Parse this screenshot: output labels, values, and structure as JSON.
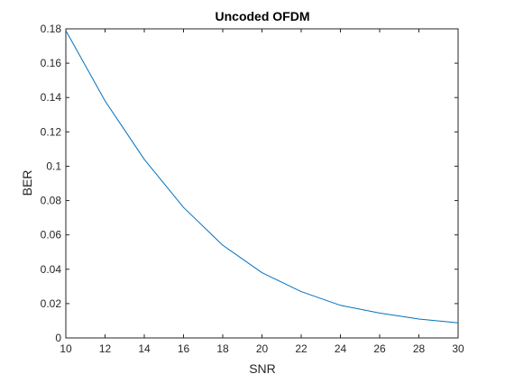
{
  "chart_data": {
    "type": "line",
    "title": "Uncoded OFDM",
    "xlabel": "SNR",
    "ylabel": "BER",
    "xlim": [
      10,
      30
    ],
    "ylim": [
      0,
      0.18
    ],
    "xticks": [
      "10",
      "12",
      "14",
      "16",
      "18",
      "20",
      "22",
      "24",
      "26",
      "28",
      "30"
    ],
    "yticks": [
      "0",
      "0.02",
      "0.04",
      "0.06",
      "0.08",
      "0.1",
      "0.12",
      "0.14",
      "0.16",
      "0.18"
    ],
    "grid": false,
    "series": [
      {
        "color": "#0072BD",
        "x": [
          10,
          12,
          14,
          16,
          18,
          20,
          22,
          24,
          26,
          28,
          30
        ],
        "y": [
          0.179,
          0.138,
          0.104,
          0.076,
          0.054,
          0.038,
          0.027,
          0.019,
          0.0145,
          0.011,
          0.0088
        ]
      }
    ]
  }
}
